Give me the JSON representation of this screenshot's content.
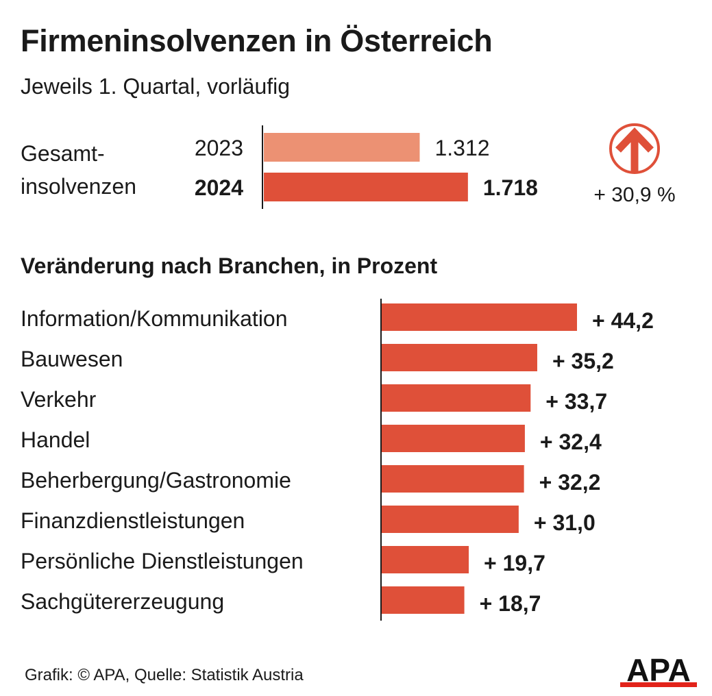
{
  "title": "Firmeninsolvenzen in Österreich",
  "subtitle": "Jeweils 1. Quartal, vorläufig",
  "total_label": "Gesamt-insolvenzen",
  "total_label_lines": [
    "Gesamt-",
    "insolvenzen"
  ],
  "total_change": "+ 30,9 %",
  "section_title": "Veränderung nach Branchen, in Prozent",
  "footer": "Grafik: © APA, Quelle: Statistik Austria",
  "logo_text": "APA",
  "colors": {
    "bar_2023": "#EC9173",
    "bar_main": "#DF5039",
    "arrow": "#DF5039",
    "text": "#1a1a1a",
    "logo_red": "#E2231A"
  },
  "chart_data": [
    {
      "type": "bar",
      "orientation": "horizontal",
      "title": "Gesamt-insolvenzen",
      "categories": [
        "2023",
        "2024"
      ],
      "values": [
        1312,
        1718
      ],
      "value_labels": [
        "1.312",
        "1.718"
      ],
      "xlim": [
        0,
        1990
      ]
    },
    {
      "type": "bar",
      "orientation": "horizontal",
      "title": "Veränderung nach Branchen, in Prozent",
      "categories": [
        "Information/Kommunikation",
        "Bauwesen",
        "Verkehr",
        "Handel",
        "Beherbergung/Gastronomie",
        "Finanzdienstleistungen",
        "Persönliche Dienstleistungen",
        "Sachgütererzeugung"
      ],
      "values": [
        44.2,
        35.2,
        33.7,
        32.4,
        32.2,
        31.0,
        19.7,
        18.7
      ],
      "value_labels": [
        "+ 44,2",
        "+ 35,2",
        "+ 33,7",
        "+ 32,4",
        "+ 32,2",
        "+ 31,0",
        "+ 19,7",
        "+ 18,7"
      ],
      "xlim": [
        0,
        44.2
      ]
    }
  ]
}
